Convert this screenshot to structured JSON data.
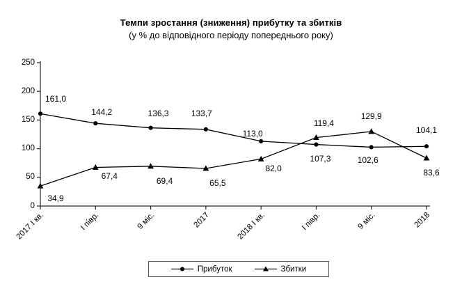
{
  "chart_data": {
    "type": "line",
    "title": "Темпи зростання (зниження) прибутку та збитків",
    "subtitle": "(у % до відповідного періоду попереднього року)",
    "categories": [
      "2017 І кв.",
      "І півр.",
      "9 міс.",
      "2017",
      "2018 І кв.",
      "І півр.",
      "9 міс.",
      "2018"
    ],
    "series": [
      {
        "name": "Прибуток",
        "marker": "circle",
        "color": "#000000",
        "values": [
          161.0,
          144.2,
          136.3,
          133.7,
          113.0,
          107.3,
          102.6,
          104.1
        ],
        "labels": [
          "161,0",
          "144,2",
          "136,3",
          "133,7",
          "113,0",
          "107,3",
          "102,6",
          "104,1"
        ]
      },
      {
        "name": "Збитки",
        "marker": "triangle",
        "color": "#000000",
        "values": [
          34.9,
          67.4,
          69.4,
          65.5,
          82.0,
          119.4,
          129.9,
          83.6
        ],
        "labels": [
          "34,9",
          "67,4",
          "69,4",
          "65,5",
          "82,0",
          "119,4",
          "129,9",
          "83,6"
        ]
      }
    ],
    "xlabel": "",
    "ylabel": "",
    "ylim": [
      0,
      250
    ],
    "yticks": [
      0,
      50,
      100,
      150,
      200,
      250
    ],
    "ytick_labels": [
      "0",
      "50",
      "100",
      "150",
      "200",
      "250"
    ],
    "grid": false,
    "legend_position": "bottom",
    "axis_color": "#262626",
    "text_color": "#000000",
    "background": "#ffffff"
  }
}
